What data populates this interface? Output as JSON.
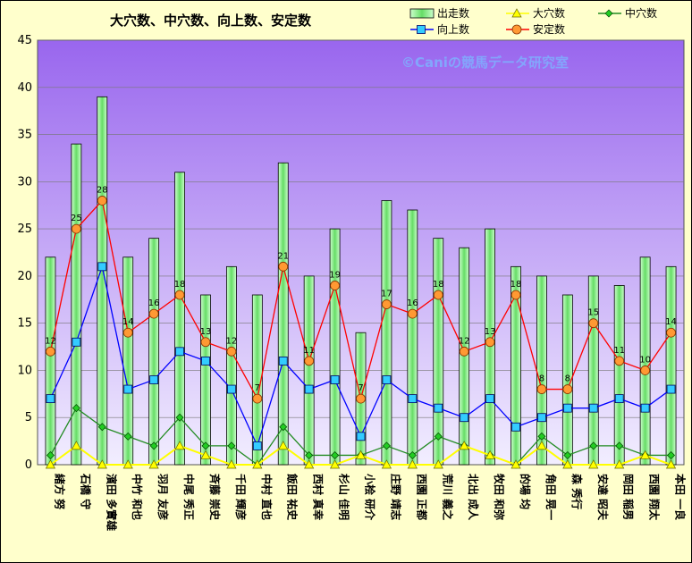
{
  "chart_data": {
    "type": "bar",
    "title": "大穴数、中穴数、向上数、安定数",
    "watermark": "©Caniの競馬データ研究室",
    "ylim": [
      0,
      45
    ],
    "yticks": [
      0,
      5,
      10,
      15,
      20,
      25,
      30,
      35,
      40,
      45
    ],
    "grid": true,
    "legend_position": "top-right",
    "categories": [
      "緒方 努",
      "石橋 守",
      "濱田 多實雄",
      "中竹 和也",
      "羽月 友彦",
      "中尾 秀正",
      "斉藤 崇史",
      "千田 輝彦",
      "中村 直也",
      "飯田 祐史",
      "西村 真幸",
      "杉山 佳明",
      "小桧 研介",
      "庄野 靖志",
      "西園 正都",
      "荒川 義之",
      "北出 成人",
      "牧田 和弥",
      "的場 均",
      "角田 晃一",
      "森 秀行",
      "安達 昭夫",
      "岡田 稲男",
      "西園 翔太",
      "本田 一良"
    ],
    "series": [
      {
        "name": "出走数",
        "kind": "bar",
        "color": "#90ee90",
        "values": [
          22,
          34,
          39,
          22,
          24,
          31,
          18,
          21,
          18,
          32,
          20,
          25,
          14,
          28,
          27,
          24,
          23,
          25,
          21,
          20,
          18,
          20,
          19,
          22,
          21
        ]
      },
      {
        "name": "大穴数",
        "kind": "line",
        "color": "#ffff00",
        "values": [
          0,
          2,
          0,
          0,
          0,
          2,
          1,
          0,
          0,
          2,
          0,
          0,
          1,
          0,
          0,
          0,
          2,
          1,
          0,
          2,
          0,
          0,
          0,
          1,
          0
        ]
      },
      {
        "name": "中穴数",
        "kind": "line",
        "color": "#228b22",
        "values": [
          1,
          6,
          4,
          3,
          2,
          5,
          2,
          2,
          0,
          4,
          1,
          1,
          1,
          2,
          1,
          3,
          2,
          1,
          0,
          3,
          1,
          2,
          2,
          1,
          1
        ]
      },
      {
        "name": "向上数",
        "kind": "line",
        "color": "#0000ff",
        "values": [
          7,
          13,
          21,
          8,
          9,
          12,
          11,
          8,
          2,
          11,
          8,
          9,
          3,
          9,
          7,
          6,
          5,
          7,
          4,
          5,
          6,
          6,
          7,
          6,
          8
        ]
      },
      {
        "name": "安定数",
        "kind": "line",
        "color": "#ff0000",
        "values": [
          12,
          25,
          28,
          14,
          16,
          18,
          13,
          12,
          7,
          21,
          11,
          19,
          7,
          17,
          16,
          18,
          12,
          13,
          18,
          8,
          8,
          15,
          11,
          10,
          14
        ]
      }
    ]
  }
}
